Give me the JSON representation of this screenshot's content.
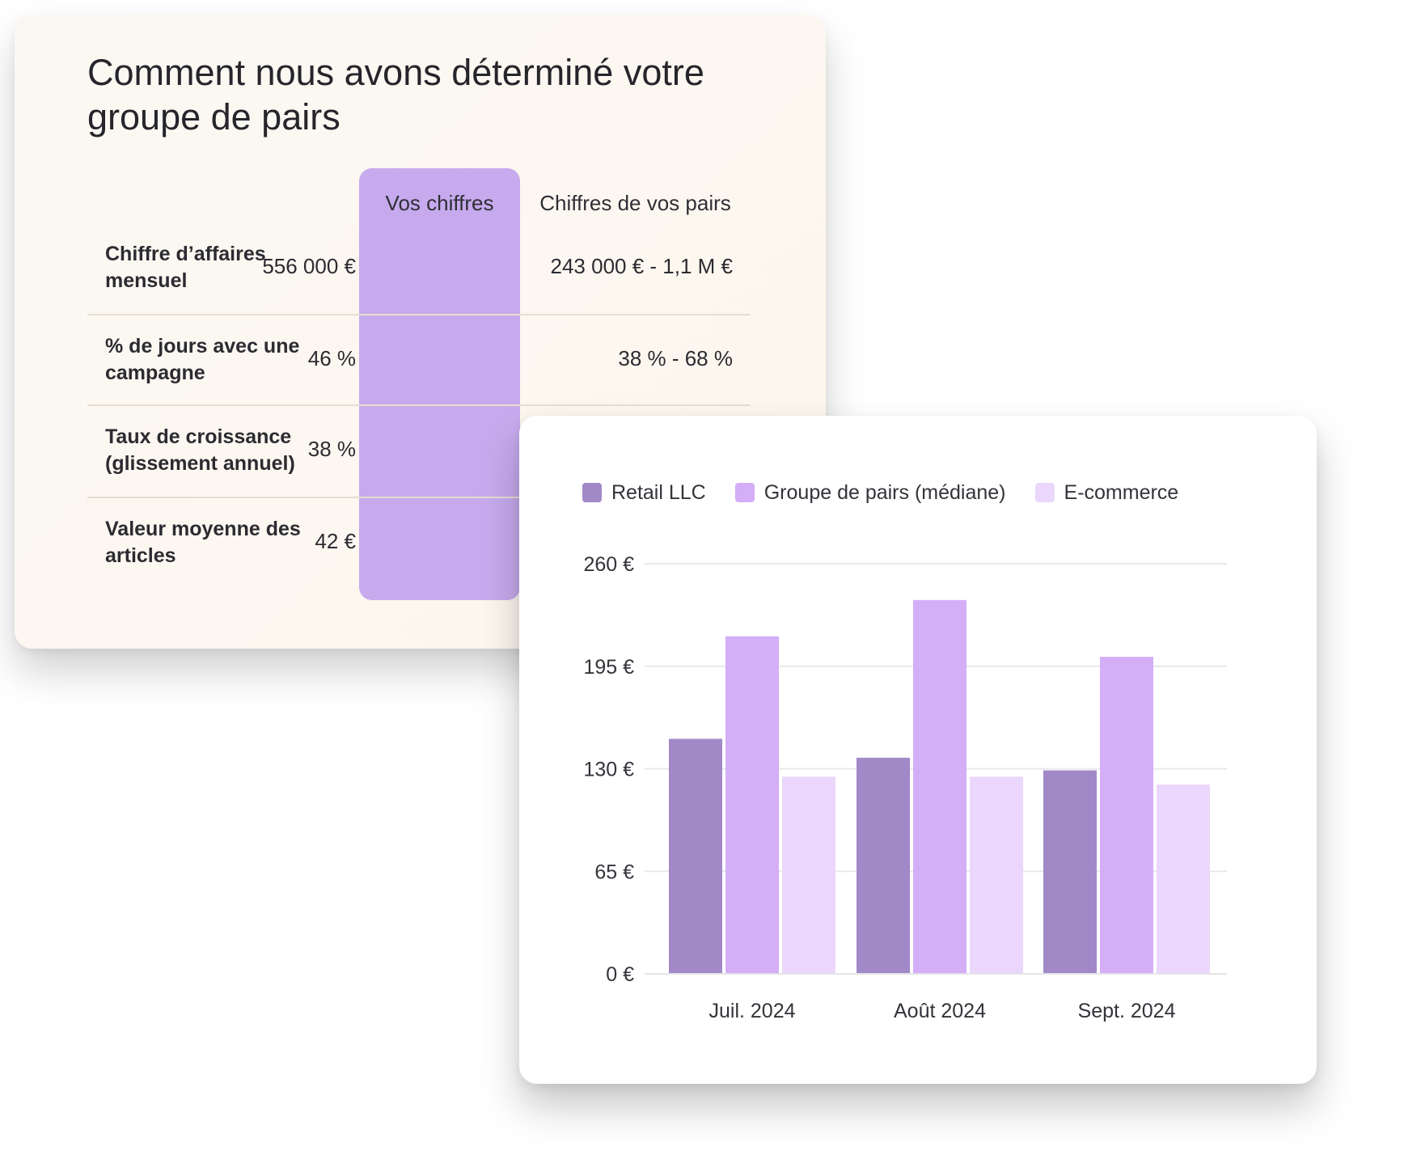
{
  "table_card": {
    "title": "Comment nous avons déterminé votre groupe de pairs",
    "columns": {
      "yours": "Vos chiffres",
      "peers": "Chiffres de vos pairs"
    },
    "rows": [
      {
        "label": "Chiffre d’affaires mensuel",
        "yours": "556 000 €",
        "peers": "243 000 € - 1,1 M €"
      },
      {
        "label": "% de jours avec une campagne",
        "yours": "46 %",
        "peers": "38 % - 68 %"
      },
      {
        "label": "Taux de croissance (glissement annuel)",
        "yours": "38 %",
        "peers": ""
      },
      {
        "label": "Valeur moyenne des articles",
        "yours": "42 €",
        "peers": ""
      }
    ],
    "colors": {
      "highlight": "#c6aaed",
      "background": "#fbf8f3"
    }
  },
  "chart_data": {
    "type": "bar",
    "categories": [
      "Juil. 2024",
      "Août 2024",
      "Sept. 2024"
    ],
    "series": [
      {
        "name": "Retail LLC",
        "values": [
          149,
          137,
          129
        ],
        "color": "#a189c8"
      },
      {
        "name": "Groupe de pairs (médiane)",
        "values": [
          214,
          237,
          201
        ],
        "color": "#d4aef7"
      },
      {
        "name": "E-commerce",
        "values": [
          125,
          125,
          120
        ],
        "color": "#ead7fb"
      }
    ],
    "yticks": [
      "0 €",
      "65 €",
      "130 €",
      "195 €",
      "260 €"
    ],
    "ylim": [
      0,
      260
    ],
    "grid": true,
    "legend": "top",
    "title": "",
    "xlabel": "",
    "ylabel": ""
  }
}
